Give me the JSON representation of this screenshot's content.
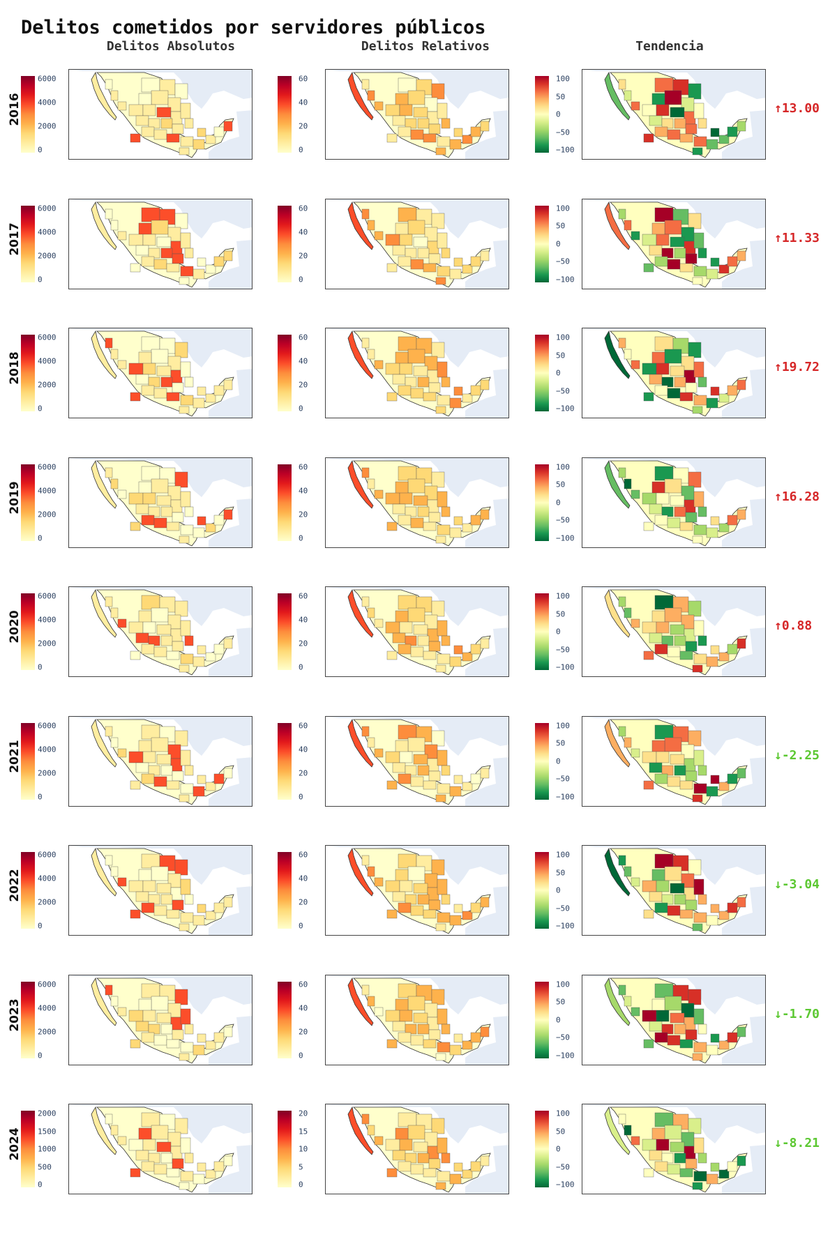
{
  "title": "Delitos cometidos por servidores públicos",
  "column_headers": [
    "Delitos Absolutos",
    "Delitos Relativos",
    "Tendencia"
  ],
  "colors": {
    "ylorrd": [
      "#ffffcc",
      "#ffeda0",
      "#fed976",
      "#feb24c",
      "#fd8d3c",
      "#fc4e2a",
      "#e31a1c",
      "#bd0026",
      "#800026"
    ],
    "rdylgn": [
      "#006837",
      "#1a9850",
      "#66bd63",
      "#a6d96a",
      "#d9ef8b",
      "#ffffbf",
      "#fee08b",
      "#fdae61",
      "#f46d43",
      "#d73027",
      "#a50026"
    ],
    "up": "#d62728",
    "down": "#5cc832",
    "ocean": "#e5ecf6"
  },
  "rows": [
    {
      "year": "2016",
      "abs_ticks": [
        "6000",
        "4000",
        "2000",
        "0"
      ],
      "rel_ticks": [
        "60",
        "40",
        "20",
        "0"
      ],
      "trend_ticks": [
        "100",
        "50",
        "0",
        "−50",
        "−100"
      ],
      "trend": "↑13.00",
      "direction": "up"
    },
    {
      "year": "2017",
      "abs_ticks": [
        "6000",
        "4000",
        "2000",
        "0"
      ],
      "rel_ticks": [
        "60",
        "40",
        "20",
        "0"
      ],
      "trend_ticks": [
        "100",
        "50",
        "0",
        "−50",
        "−100"
      ],
      "trend": "↑11.33",
      "direction": "up"
    },
    {
      "year": "2018",
      "abs_ticks": [
        "6000",
        "4000",
        "2000",
        "0"
      ],
      "rel_ticks": [
        "60",
        "40",
        "20",
        "0"
      ],
      "trend_ticks": [
        "100",
        "50",
        "0",
        "−50",
        "−100"
      ],
      "trend": "↑19.72",
      "direction": "up"
    },
    {
      "year": "2019",
      "abs_ticks": [
        "6000",
        "4000",
        "2000",
        "0"
      ],
      "rel_ticks": [
        "60",
        "40",
        "20",
        "0"
      ],
      "trend_ticks": [
        "100",
        "50",
        "0",
        "−50",
        "−100"
      ],
      "trend": "↑16.28",
      "direction": "up"
    },
    {
      "year": "2020",
      "abs_ticks": [
        "6000",
        "4000",
        "2000",
        "0"
      ],
      "rel_ticks": [
        "60",
        "40",
        "20",
        "0"
      ],
      "trend_ticks": [
        "100",
        "50",
        "0",
        "−50",
        "−100"
      ],
      "trend": "↑0.88",
      "direction": "up"
    },
    {
      "year": "2021",
      "abs_ticks": [
        "6000",
        "4000",
        "2000",
        "0"
      ],
      "rel_ticks": [
        "60",
        "40",
        "20",
        "0"
      ],
      "trend_ticks": [
        "100",
        "50",
        "0",
        "−50",
        "−100"
      ],
      "trend": "↓-2.25",
      "direction": "down"
    },
    {
      "year": "2022",
      "abs_ticks": [
        "6000",
        "4000",
        "2000",
        "0"
      ],
      "rel_ticks": [
        "60",
        "40",
        "20",
        "0"
      ],
      "trend_ticks": [
        "100",
        "50",
        "0",
        "−50",
        "−100"
      ],
      "trend": "↓-3.04",
      "direction": "down"
    },
    {
      "year": "2023",
      "abs_ticks": [
        "6000",
        "4000",
        "2000",
        "0"
      ],
      "rel_ticks": [
        "60",
        "40",
        "20",
        "0"
      ],
      "trend_ticks": [
        "100",
        "50",
        "0",
        "−50",
        "−100"
      ],
      "trend": "↓-1.70",
      "direction": "down"
    },
    {
      "year": "2024",
      "abs_ticks": [
        "2000",
        "1500",
        "1000",
        "500",
        "0"
      ],
      "rel_ticks": [
        "20",
        "15",
        "10",
        "5",
        "0"
      ],
      "trend_ticks": [
        "100",
        "50",
        "0",
        "−50",
        "−100"
      ],
      "trend": "↓-8.21",
      "direction": "down"
    }
  ]
}
